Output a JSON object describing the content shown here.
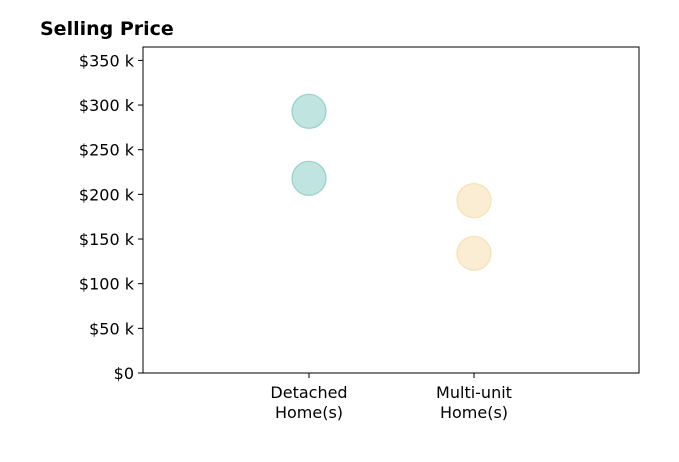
{
  "chart_data": {
    "type": "scatter",
    "title": "Selling Price",
    "xlabel": "",
    "ylabel": "",
    "categories": [
      [
        "Detached",
        "Home(s)"
      ],
      [
        "Multi-unit",
        "Home(s)"
      ]
    ],
    "ylim": [
      0,
      365000
    ],
    "yticks": [
      0,
      50000,
      100000,
      150000,
      200000,
      250000,
      300000,
      350000
    ],
    "ytick_labels": [
      "$0",
      "$50 k",
      "$100 k",
      "$150 k",
      "$200 k",
      "$250 k",
      "$300 k",
      "$350 k"
    ],
    "grid": false,
    "legend": "none",
    "series": [
      {
        "category": 0,
        "color": "#8dcdc6",
        "values": [
          293000,
          218000
        ]
      },
      {
        "category": 1,
        "color": "#f5dfae",
        "values": [
          193000,
          134000
        ]
      }
    ]
  }
}
